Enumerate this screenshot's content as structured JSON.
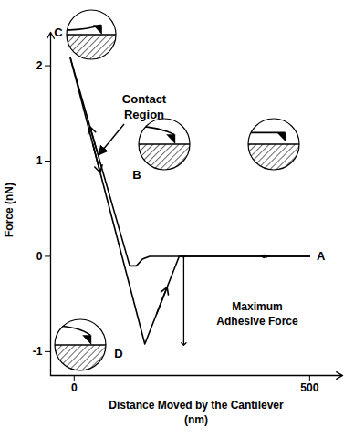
{
  "chart_data": {
    "type": "line",
    "x_label": "Distance Moved by the Cantilever\n(nm)",
    "y_label": "Force (nN)",
    "xlim": [
      -50,
      570
    ],
    "ylim": [
      -1.25,
      2.35
    ],
    "xticks": [
      0,
      500
    ],
    "yticks": [
      -1,
      0,
      1,
      2
    ],
    "grid": false,
    "series": [
      {
        "x": [
          500,
          160,
          145,
          132,
          118,
          -8
        ],
        "values": [
          0,
          0,
          -0.03,
          -0.1,
          -0.1,
          2.08
        ],
        "color": "#000000"
      },
      {
        "x": [
          -8,
          150,
          223,
          500
        ],
        "values": [
          2.08,
          -0.92,
          0,
          0
        ],
        "color": "#000000"
      }
    ],
    "point_labels": [
      "A",
      "B",
      "C",
      "D"
    ],
    "annotations": [
      "Contact\nRegion",
      "Maximum\nAdhesive Force"
    ]
  }
}
